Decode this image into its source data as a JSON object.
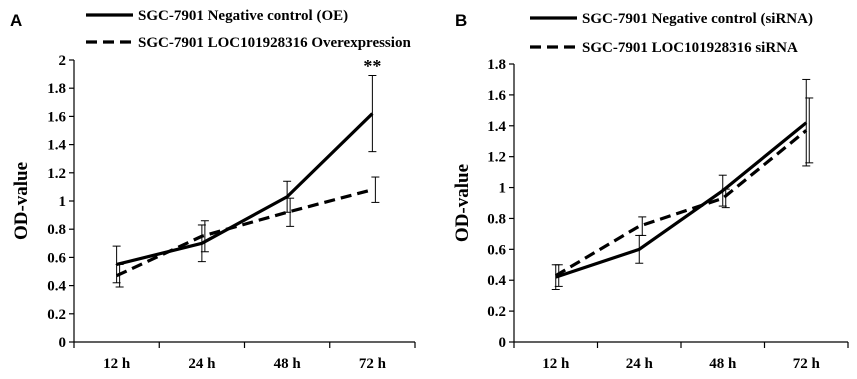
{
  "chart_data": [
    {
      "type": "line",
      "panel": "A",
      "ylabel": "OD-value",
      "xlabel": "",
      "categories": [
        "12 h",
        "24 h",
        "48 h",
        "72 h"
      ],
      "ylim": [
        0,
        2
      ],
      "yticks": [
        0,
        0.2,
        0.4,
        0.6,
        0.8,
        1,
        1.2,
        1.4,
        1.6,
        1.8,
        2
      ],
      "grid": false,
      "legend": "top-left",
      "series": [
        {
          "name": "SGC-7901 Negative control (OE)",
          "style": "solid",
          "values": [
            0.55,
            0.7,
            1.03,
            1.62
          ],
          "errors": [
            0.13,
            0.13,
            0.11,
            0.27
          ]
        },
        {
          "name": "SGC-7901 LOC101928316 Overexpression",
          "style": "dashed",
          "values": [
            0.47,
            0.75,
            0.92,
            1.08
          ],
          "errors": [
            0.08,
            0.11,
            0.1,
            0.09
          ]
        }
      ],
      "annotations": [
        {
          "text": "**",
          "category": "72 h",
          "y": 1.9
        }
      ]
    },
    {
      "type": "line",
      "panel": "B",
      "ylabel": "OD-value",
      "xlabel": "",
      "categories": [
        "12 h",
        "24 h",
        "48 h",
        "72 h"
      ],
      "ylim": [
        0,
        1.8
      ],
      "yticks": [
        0,
        0.2,
        0.4,
        0.6,
        0.8,
        1,
        1.2,
        1.4,
        1.6,
        1.8
      ],
      "grid": false,
      "legend": "top-left",
      "series": [
        {
          "name": "SGC-7901 Negative control (siRNA)",
          "style": "solid",
          "values": [
            0.42,
            0.6,
            0.98,
            1.42
          ],
          "errors": [
            0.08,
            0.09,
            0.1,
            0.28
          ]
        },
        {
          "name": "SGC-7901 LOC101928316 siRNA",
          "style": "dashed",
          "values": [
            0.43,
            0.75,
            0.93,
            1.37
          ],
          "errors": [
            0.07,
            0.06,
            0.06,
            0.21
          ]
        }
      ],
      "annotations": []
    }
  ]
}
